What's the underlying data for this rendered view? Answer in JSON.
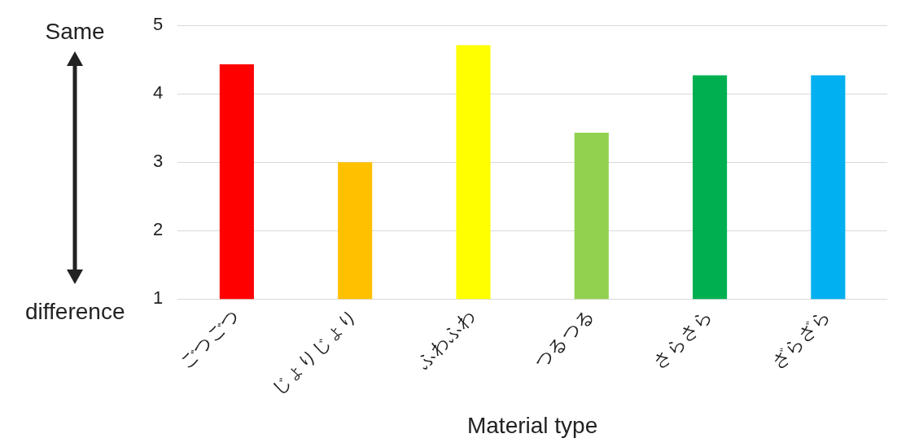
{
  "chart_data": {
    "type": "bar",
    "xlabel": "Material type",
    "categories": [
      "ごつごつ",
      "じょりじょり",
      "ふわふわ",
      "つるつる",
      "さらさら",
      "ざらざら"
    ],
    "values": [
      4.43,
      3.0,
      4.71,
      3.43,
      4.27,
      4.27
    ],
    "colors": [
      "#ff0000",
      "#ffc000",
      "#ffff00",
      "#92d050",
      "#00b050",
      "#00b0f0"
    ],
    "ylim": [
      1,
      5
    ],
    "yticks": [
      1,
      2,
      3,
      4,
      5
    ],
    "grid": "y",
    "legend": false,
    "annotations": [
      "Same",
      "difference"
    ]
  }
}
